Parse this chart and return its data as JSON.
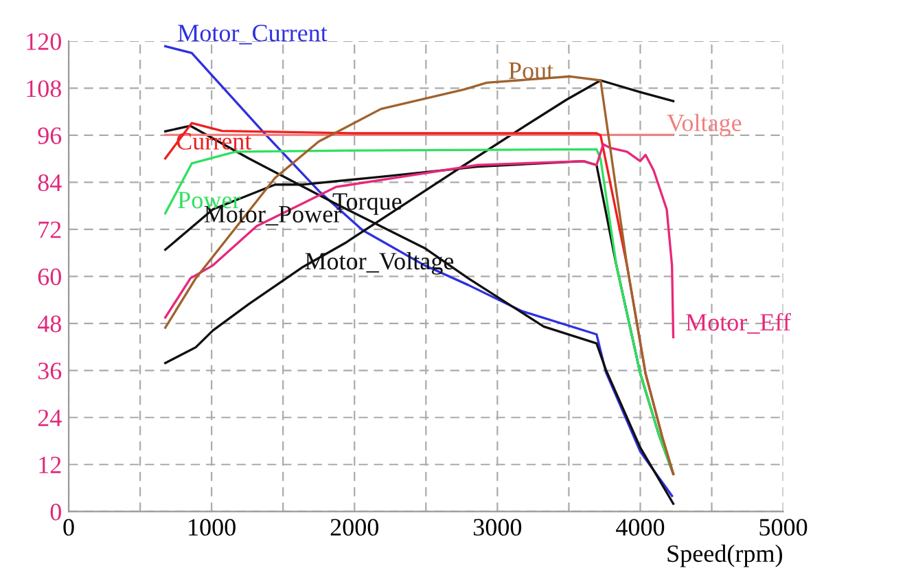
{
  "chart_data": {
    "type": "line",
    "xlabel": "Speed(rpm)",
    "xlim": [
      0,
      5000
    ],
    "ylim": [
      0,
      120
    ],
    "xticks": [
      0,
      {
        "value": 500,
        "label": null
      },
      1000,
      {
        "value": 1500,
        "label": null
      },
      2000,
      {
        "value": 2500,
        "label": null
      },
      3000,
      {
        "value": 3500,
        "label": null
      },
      4000,
      {
        "value": 4500,
        "label": null
      },
      5000
    ],
    "yticks": [
      0,
      12,
      24,
      36,
      48,
      60,
      72,
      84,
      96,
      108,
      120
    ],
    "grid": true,
    "line_style": "solid",
    "marker": "none",
    "series": [
      {
        "name": "Motor_Current",
        "color": "#3030e0",
        "x": [
          676,
          861,
          1380,
          1750,
          2056,
          2491,
          2796,
          3167,
          3694,
          3759,
          4000,
          4222
        ],
        "values": [
          118.7,
          117.0,
          96.1,
          81.8,
          71.8,
          62.8,
          57.8,
          51.2,
          45.2,
          35.6,
          15.3,
          4.0
        ]
      },
      {
        "name": "Torque",
        "color": "#101010",
        "x": [
          676,
          852,
          1259,
          1870,
          2491,
          2796,
          3324,
          3694,
          3759,
          4000,
          4231
        ],
        "values": [
          97.0,
          98.4,
          90.1,
          78.5,
          67.2,
          59.5,
          47.2,
          42.9,
          36.2,
          16.3,
          2.0
        ]
      },
      {
        "name": "Motor_Power",
        "color": "#101010",
        "x": [
          676,
          1009,
          1444,
          1630,
          2185,
          2861,
          3602,
          3694,
          3833,
          4000,
          4130,
          4231
        ],
        "values": [
          66.8,
          77.1,
          83.4,
          83.4,
          85.4,
          88.0,
          89.4,
          88.4,
          62.8,
          35.2,
          19.6,
          9.6
        ]
      },
      {
        "name": "Motor_Voltage",
        "color": "#101010",
        "x": [
          676,
          889,
          1009,
          1259,
          1630,
          1935,
          2769,
          3139,
          3481,
          3722,
          4000,
          4231
        ],
        "values": [
          37.9,
          41.9,
          46.2,
          52.9,
          62.2,
          68.5,
          88.4,
          97.1,
          105.0,
          110.0,
          107.0,
          104.7
        ]
      },
      {
        "name": "Voltage",
        "color": "#f08080",
        "x": [
          676,
          4231
        ],
        "values": [
          96.1,
          96.1
        ]
      },
      {
        "name": "Current",
        "color": "#ee2020",
        "x": [
          676,
          861,
          1074,
          2000,
          3694,
          3722,
          3907,
          4037,
          4157,
          4231
        ],
        "values": [
          90.1,
          99.1,
          97.1,
          96.5,
          96.5,
          96.0,
          62.8,
          35.2,
          18.6,
          9.6
        ]
      },
      {
        "name": "Power",
        "color": "#30e060",
        "x": [
          676,
          861,
          1167,
          2000,
          3694,
          3722,
          3833,
          4000,
          4130,
          4222
        ],
        "values": [
          76.1,
          88.8,
          91.8,
          92.1,
          92.4,
          90.0,
          62.8,
          35.2,
          19.6,
          10.6
        ]
      },
      {
        "name": "Motor_Eff",
        "color": "#e8287a",
        "x": [
          676,
          852,
          1009,
          1315,
          1870,
          2861,
          3602,
          3694,
          3741,
          3787,
          3907,
          4000,
          4037,
          4093,
          4185,
          4222,
          4231
        ],
        "values": [
          49.5,
          59.5,
          62.8,
          72.8,
          82.8,
          88.4,
          89.4,
          88.4,
          93.7,
          92.8,
          91.8,
          89.4,
          91.0,
          87.1,
          77.1,
          62.8,
          44.5
        ]
      },
      {
        "name": "Pout",
        "color": "#a0622d",
        "x": [
          676,
          889,
          1444,
          1750,
          2185,
          2769,
          2926,
          3509,
          3722,
          3907,
          4037,
          4157,
          4231
        ],
        "values": [
          46.9,
          59.5,
          85.1,
          94.4,
          102.7,
          107.7,
          109.4,
          111.0,
          110.0,
          62.8,
          35.2,
          18.6,
          9.6
        ]
      }
    ]
  }
}
